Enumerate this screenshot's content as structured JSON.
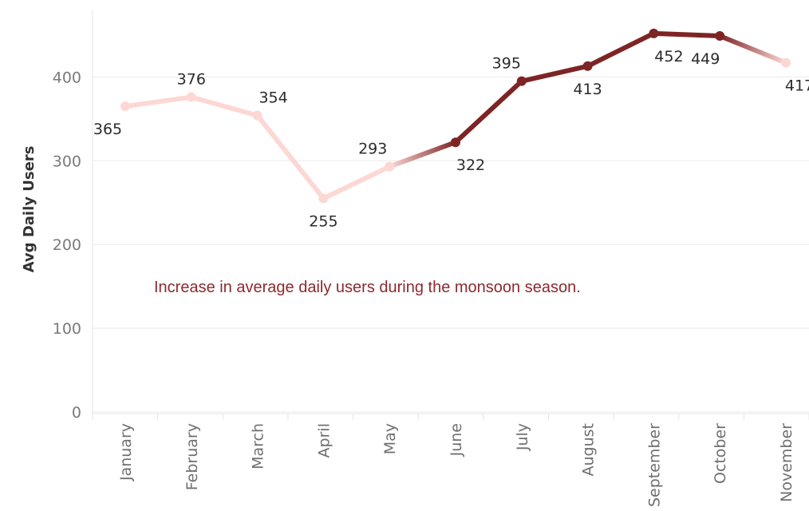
{
  "chart_data": {
    "type": "line",
    "categories": [
      "January",
      "February",
      "March",
      "April",
      "May",
      "June",
      "July",
      "August",
      "September",
      "October",
      "November"
    ],
    "values": [
      365,
      376,
      354,
      255,
      293,
      322,
      395,
      413,
      452,
      449,
      417
    ],
    "data_labels": [
      "365",
      "376",
      "354",
      "255",
      "293",
      "322",
      "395",
      "413",
      "452",
      "449",
      "417"
    ],
    "ylabel": "Avg Daily Users",
    "xlabel": "",
    "ylim": [
      0,
      480
    ],
    "yticks": [
      0,
      100,
      200,
      300,
      400
    ],
    "ytick_labels": [
      "0",
      "100",
      "200",
      "300",
      "400"
    ],
    "grid": true,
    "annotation": "Increase in average daily users during the monsoon season.",
    "colors": {
      "off_season": "#fdd7d4",
      "monsoon": "#7e2424",
      "grid": "#ebebeb",
      "annotation": "#8b2a2e"
    },
    "highlight_categories": [
      "June",
      "July",
      "August",
      "September",
      "October"
    ]
  }
}
